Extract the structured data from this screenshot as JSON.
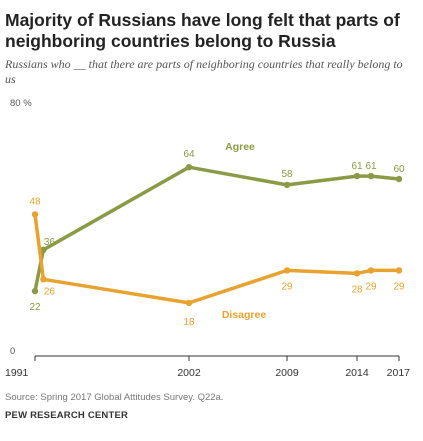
{
  "title": "Majority of Russians have long felt that parts of neighboring countries belong to Russia",
  "subtitle": "Russians who __ that there are parts of neighboring countries that really belong to us",
  "source": "Source: Spring 2017 Global Attitudes Survey. Q22a.",
  "organization": "PEW RESEARCH CENTER",
  "colors": {
    "agree": "#8b9a46",
    "disagree": "#e8a22f",
    "axis": "#333333",
    "label_gray": "#444444"
  },
  "chart_data": {
    "type": "line",
    "x": [
      1991,
      1991.6,
      2002,
      2009,
      2014,
      2015,
      2017
    ],
    "x_tick_labels": [
      "1991",
      "2002",
      "2009",
      "2014",
      "2017"
    ],
    "x_ticks": [
      1991,
      2002,
      2009,
      2014,
      2017
    ],
    "y_tick_labels": [
      "0",
      "80 %"
    ],
    "ylim": [
      0,
      80
    ],
    "xlim": [
      1991,
      2017
    ],
    "grid": false,
    "series": [
      {
        "name": "Agree",
        "values": [
          22,
          36,
          64,
          58,
          61,
          61,
          60
        ],
        "point_labels": [
          "22",
          "36",
          "64",
          "58",
          "61",
          "61",
          "60"
        ]
      },
      {
        "name": "Disagree",
        "values": [
          48,
          26,
          18,
          29,
          28,
          29,
          29
        ],
        "point_labels": [
          "48",
          "26",
          "18",
          "29",
          "28",
          "29",
          "29"
        ]
      }
    ]
  }
}
